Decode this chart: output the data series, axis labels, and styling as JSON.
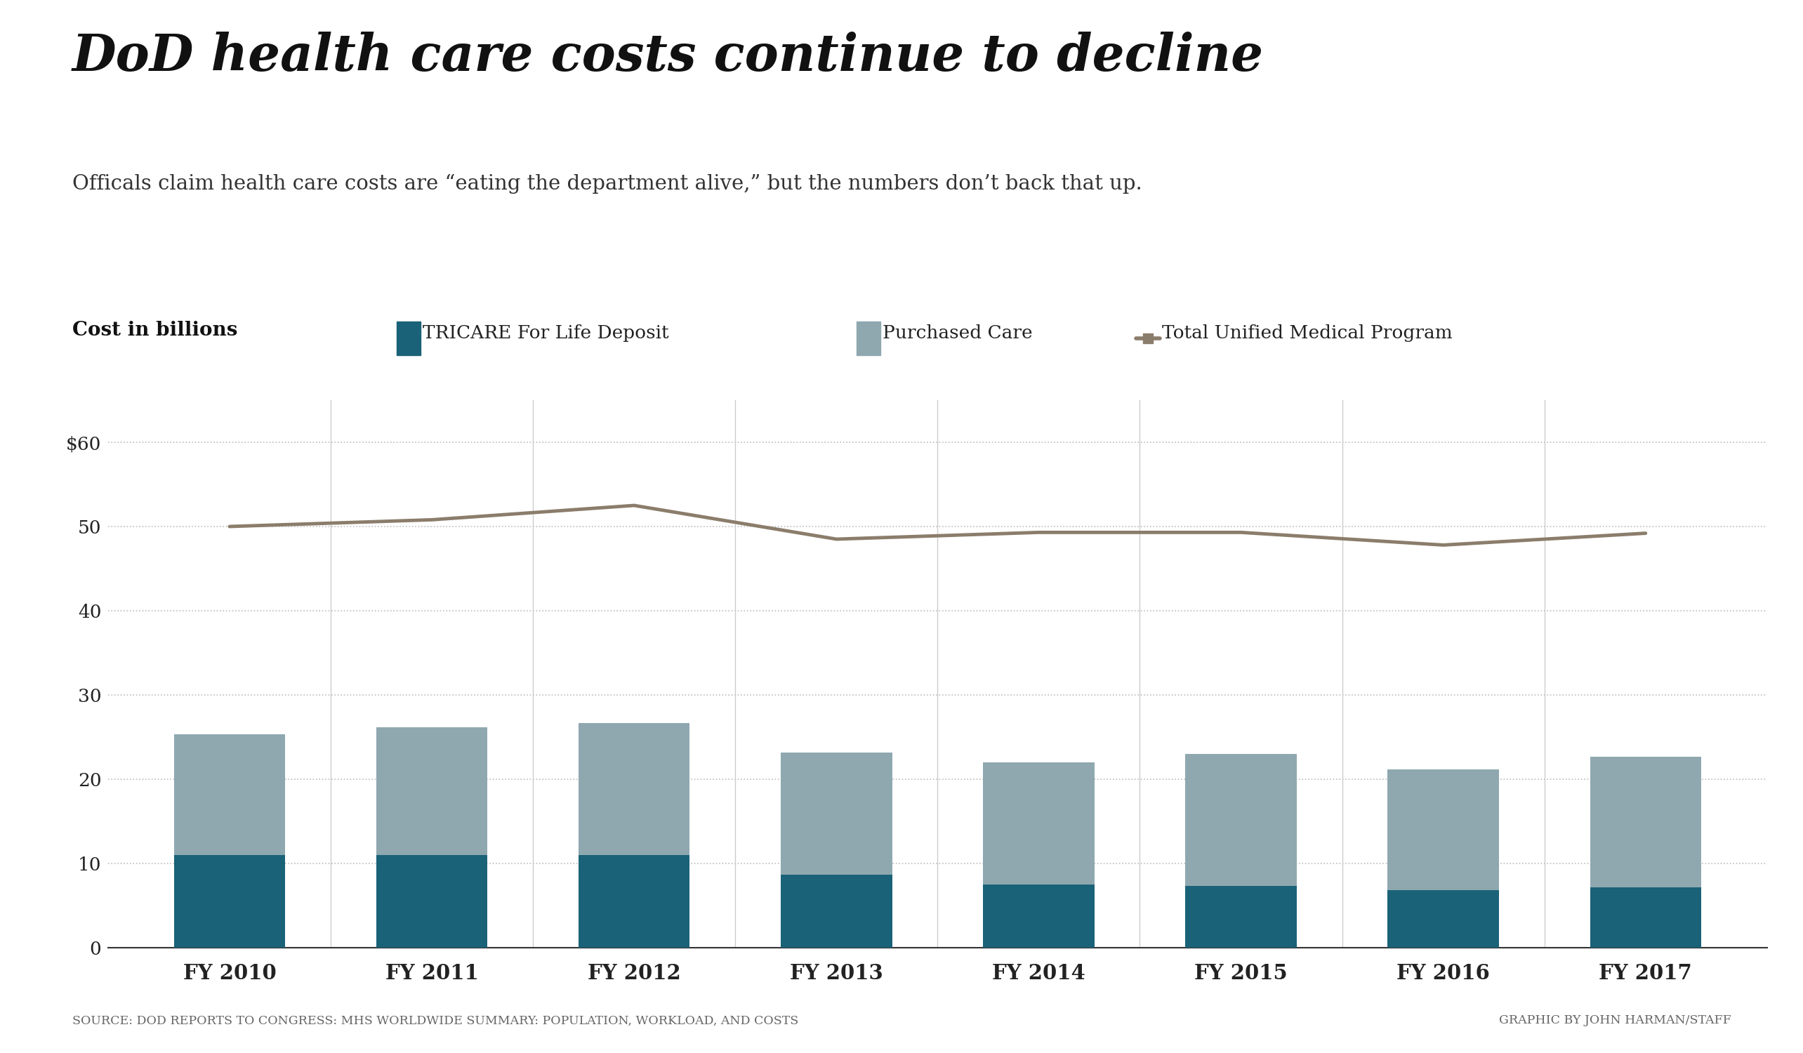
{
  "title": "DoD health care costs continue to decline",
  "subtitle": "Officals claim health care costs are “eating the department alive,” but the numbers don’t back that up.",
  "ylabel": "Cost in billions",
  "categories": [
    "FY 2010",
    "FY 2011",
    "FY 2012",
    "FY 2013",
    "FY 2014",
    "FY 2015",
    "FY 2016",
    "FY 2017"
  ],
  "tricare_deposit": [
    11.0,
    11.0,
    11.0,
    8.7,
    7.5,
    7.3,
    6.8,
    7.2
  ],
  "purchased_care": [
    14.3,
    15.2,
    15.7,
    14.5,
    14.5,
    15.7,
    14.4,
    15.5
  ],
  "total_unified": [
    50.0,
    50.8,
    52.5,
    48.5,
    49.3,
    49.3,
    47.8,
    49.2
  ],
  "tricare_color": "#1a6278",
  "purchased_care_color": "#8fa8b0",
  "total_line_color": "#8b7d6b",
  "background_color": "#ffffff",
  "grid_color": "#bbbbbb",
  "ylim": [
    0,
    65
  ],
  "yticks": [
    0,
    10,
    20,
    30,
    40,
    50,
    60
  ],
  "ytick_labels": [
    "0",
    "10",
    "20",
    "30",
    "40",
    "50",
    "$60"
  ],
  "legend_tricare": "TRICARE For Life Deposit",
  "legend_purchased": "Purchased Care",
  "legend_total": "Total Unified Medical Program",
  "source_text": "SOURCE: DOD REPORTS TO CONGRESS: MHS WORLDWIDE SUMMARY: POPULATION, WORKLOAD, AND COSTS",
  "credit_text": "GRAPHIC BY JOHN HARMAN/STAFF",
  "title_fontsize": 52,
  "subtitle_fontsize": 21,
  "bar_width": 0.55
}
